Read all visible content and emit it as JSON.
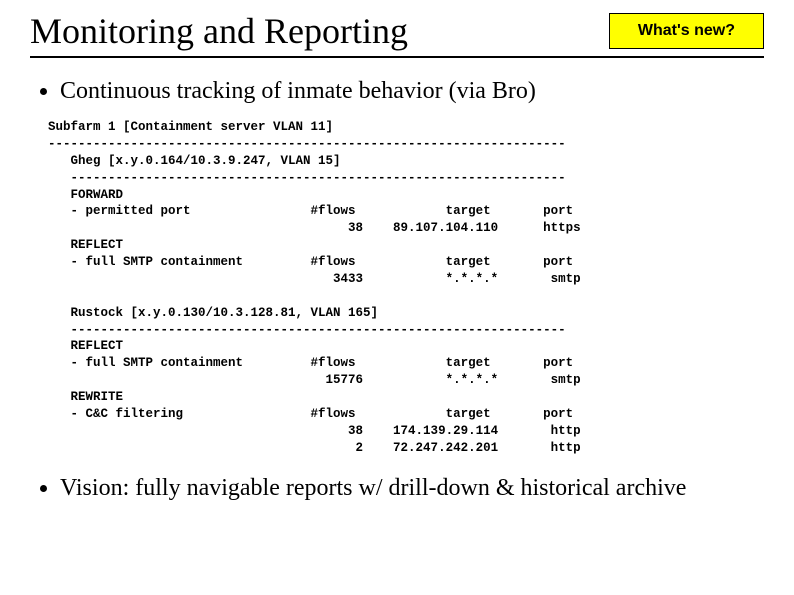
{
  "header": {
    "title": "Monitoring and Reporting",
    "badge": "What's new?"
  },
  "bullets": {
    "b1": "Continuous tracking of inmate behavior (via Bro)",
    "b2": "Vision: fully navigable reports w/ drill-down & historical archive"
  },
  "report": {
    "subfarm_header": "Subfarm 1 [Containment server VLAN 11]",
    "hr1": "---------------------------------------------------------------------",
    "gheg_header": "   Gheg [x.y.0.164/10.3.9.247, VLAN 15]",
    "hr2": "   ------------------------------------------------------------------",
    "gheg_fwd_title": "   FORWARD",
    "gheg_fwd_l1": "   - permitted port                #flows            target       port",
    "gheg_fwd_l2": "                                        38    89.107.104.110      https",
    "gheg_ref_title": "   REFLECT",
    "gheg_ref_l1": "   - full SMTP containment         #flows            target       port",
    "gheg_ref_l2": "                                      3433           *.*.*.*       smtp",
    "rustock_header": "   Rustock [x.y.0.130/10.3.128.81, VLAN 165]",
    "hr3": "   ------------------------------------------------------------------",
    "rus_ref_title": "   REFLECT",
    "rus_ref_l1": "   - full SMTP containment         #flows            target       port",
    "rus_ref_l2": "                                     15776           *.*.*.*       smtp",
    "rus_rew_title": "   REWRITE",
    "rus_rew_l1": "   - C&C filtering                 #flows            target       port",
    "rus_rew_l2": "                                        38    174.139.29.114       http",
    "rus_rew_l3": "                                         2    72.247.242.201       http"
  }
}
